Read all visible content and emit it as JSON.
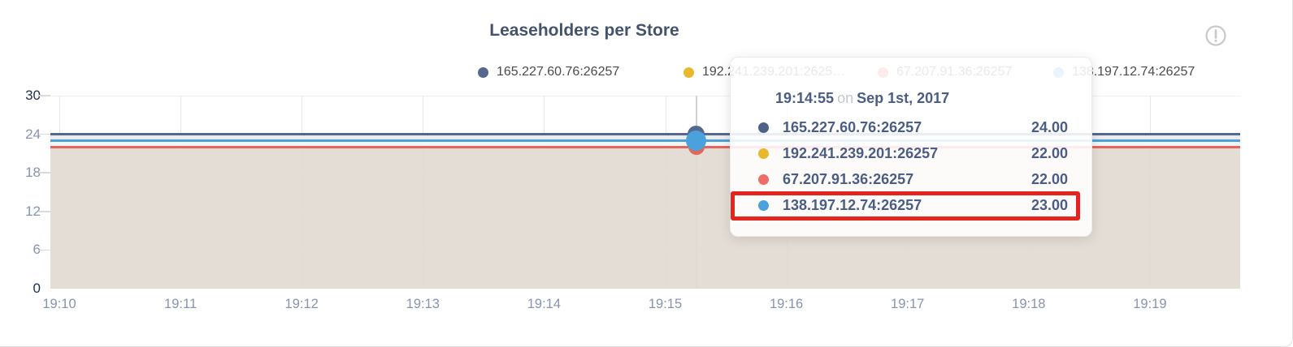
{
  "card": {
    "title": "Leaseholders per Store",
    "info_icon": "alert-circle-icon"
  },
  "chart_data": {
    "type": "line",
    "title": "Leaseholders per Store",
    "x": [
      "19:10",
      "19:11",
      "19:12",
      "19:13",
      "19:14",
      "19:15",
      "19:16",
      "19:17",
      "19:18",
      "19:19"
    ],
    "xlabel": "",
    "ylabel": "",
    "ylim": [
      0,
      30
    ],
    "y_ticks": [
      30,
      24,
      18,
      12,
      6,
      0
    ],
    "grid": true,
    "legend_position": "top",
    "area_fill_color": "#e2dad1",
    "series": [
      {
        "name": "165.227.60.76:26257",
        "color": "#55688d",
        "values": [
          24,
          24,
          24,
          24,
          24,
          24,
          24,
          24,
          24,
          24
        ]
      },
      {
        "name": "192.241.239.201:26257",
        "color": "#eab82c",
        "values": [
          22,
          22,
          22,
          22,
          22,
          22,
          22,
          22,
          22,
          22
        ]
      },
      {
        "name": "67.207.91.36:26257",
        "color": "#e2665c",
        "values": [
          22,
          22,
          22,
          22,
          22,
          22,
          22,
          22,
          22,
          22
        ]
      },
      {
        "name": "138.197.12.74:26257",
        "color": "#4ba1dc",
        "values": [
          23,
          23,
          23,
          23,
          23,
          23,
          23,
          23,
          23,
          23
        ]
      }
    ],
    "hover_point": {
      "time": "19:14:55",
      "date": "Sep 1st, 2017"
    }
  },
  "legend": {
    "items": [
      {
        "label": "165.227.60.76:26257",
        "color": "#55688d"
      },
      {
        "label": "192.241.239.201:2625…",
        "color": "#eab82c"
      },
      {
        "label": "67.207.91.36:26257",
        "color": "#e2665c"
      },
      {
        "label": "138.197.12.74:26257",
        "color": "#4ba1dc"
      }
    ]
  },
  "tooltip": {
    "time": "19:14:55",
    "conjunction": "on",
    "date": "Sep 1st, 2017",
    "rows": [
      {
        "name": "165.227.60.76:26257",
        "value": "24.00",
        "color": "#4f618a",
        "highlighted": false
      },
      {
        "name": "192.241.239.201:26257",
        "value": "22.00",
        "color": "#eab82c",
        "highlighted": false
      },
      {
        "name": "67.207.91.36:26257",
        "value": "22.00",
        "color": "#ed6e66",
        "highlighted": false
      },
      {
        "name": "138.197.12.74:26257",
        "value": "23.00",
        "color": "#4ba1dc",
        "highlighted": true
      }
    ],
    "highlight_color": "#e3251d"
  }
}
